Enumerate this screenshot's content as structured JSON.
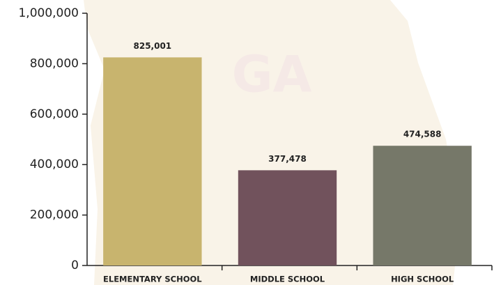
{
  "chart_data": {
    "type": "bar",
    "watermark": "GA",
    "categories": [
      "ELEMENTARY SCHOOL",
      "MIDDLE SCHOOL",
      "HIGH SCHOOL"
    ],
    "values": [
      825001,
      377478,
      474588
    ],
    "value_labels": [
      "825,001",
      "377,478",
      "474,588"
    ],
    "colors": [
      "#c8b46e",
      "#71525c",
      "#767869"
    ],
    "ylim": [
      0,
      1000000
    ],
    "yticks": [
      0,
      {
        "value": 200000,
        "label": "200,000"
      },
      {
        "value": 400000,
        "label": "400,000"
      },
      {
        "value": 600000,
        "label": "600,000"
      },
      {
        "value": 800000,
        "label": "800,000"
      },
      {
        "value": 1000000,
        "label": "1,000,000"
      }
    ],
    "grid": false
  }
}
